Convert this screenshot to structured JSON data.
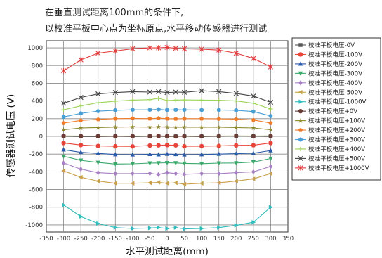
{
  "chart_data": {
    "type": "line",
    "title_lines": [
      "在垂直测试距离100mm的条件下,",
      "以校准平板中心点为坐标原点,水平移动传感器进行测试"
    ],
    "xlabel": "水平测试距离(mm)",
    "ylabel": "传感器测试电压 (V)",
    "xlim": [
      -350,
      350
    ],
    "ylim": [
      -1080,
      1080
    ],
    "xticks": [
      -350,
      -300,
      -250,
      -200,
      -150,
      -100,
      -50,
      0,
      50,
      100,
      150,
      200,
      250,
      300,
      350
    ],
    "yticks": [
      -1000,
      -800,
      -600,
      -400,
      -200,
      0,
      200,
      400,
      600,
      800,
      1000
    ],
    "x_vertical_grid": [
      -300,
      -250,
      -200,
      -150,
      -100,
      -50,
      0,
      50,
      100,
      150,
      200,
      250,
      300
    ],
    "grid": true,
    "legend_position": "right",
    "x": [
      -300,
      -250,
      -200,
      -150,
      -100,
      -50,
      -25,
      0,
      25,
      50,
      100,
      150,
      200,
      250,
      300
    ],
    "series": [
      {
        "name": "校准平板电压-0V",
        "color": "#555555",
        "marker": "square",
        "values": [
          0,
          -2,
          -2,
          0,
          -2,
          0,
          0,
          -2,
          0,
          0,
          -2,
          0,
          2,
          0,
          -2
        ]
      },
      {
        "name": "校准平板电压-100V",
        "color": "#e8443a",
        "marker": "circle",
        "values": [
          -75,
          -98,
          -108,
          -112,
          -113,
          -103,
          -101,
          -98,
          -101,
          -112,
          -110,
          -108,
          -102,
          -100,
          -75
        ]
      },
      {
        "name": "校准平板电压-200V",
        "color": "#2a5aa8",
        "marker": "triangle-up",
        "values": [
          -150,
          -180,
          -192,
          -205,
          -207,
          -202,
          -206,
          -200,
          -203,
          -207,
          -205,
          -200,
          -195,
          -190,
          -160
        ]
      },
      {
        "name": "校准平板电压-300V",
        "color": "#3aa86a",
        "marker": "triangle-down",
        "values": [
          -225,
          -270,
          -295,
          -312,
          -310,
          -302,
          -300,
          -298,
          -300,
          -305,
          -308,
          -302,
          -300,
          -290,
          -250
        ]
      },
      {
        "name": "校准平板电压-400V",
        "color": "#a77fc4",
        "marker": "diamond",
        "values": [
          -300,
          -370,
          -410,
          -420,
          -420,
          -418,
          -430,
          -410,
          -420,
          -428,
          -420,
          -420,
          -410,
          -400,
          -340
        ]
      },
      {
        "name": "校准平板电压-500V",
        "color": "#c7a04a",
        "marker": "triangle-left",
        "values": [
          -390,
          -462,
          -505,
          -530,
          -530,
          -525,
          -520,
          -530,
          -525,
          -540,
          -530,
          -525,
          -505,
          -480,
          -420
        ]
      },
      {
        "name": "校准平板电压-1000V",
        "color": "#30bdbd",
        "marker": "triangle-right",
        "values": [
          -775,
          -905,
          -985,
          -1030,
          -1040,
          -1035,
          -1030,
          -1040,
          -1030,
          -1045,
          -1040,
          -1030,
          -1005,
          -970,
          -800
        ]
      },
      {
        "name": "校准平板电压+0V",
        "color": "#6b3b35",
        "marker": "circle",
        "values": [
          5,
          3,
          3,
          2,
          3,
          3,
          5,
          3,
          0,
          3,
          2,
          3,
          5,
          3,
          5
        ]
      },
      {
        "name": "校准平板电压+100V",
        "color": "#8f8a30",
        "marker": "star",
        "values": [
          75,
          95,
          100,
          105,
          108,
          105,
          108,
          105,
          103,
          105,
          103,
          103,
          100,
          95,
          75
        ]
      },
      {
        "name": "校准平板电压+200V",
        "color": "#f07c2a",
        "marker": "pentagon",
        "values": [
          150,
          180,
          192,
          200,
          203,
          200,
          205,
          200,
          198,
          200,
          200,
          198,
          195,
          185,
          150
        ]
      },
      {
        "name": "校准平板电压+300V",
        "color": "#4a9fd6",
        "marker": "hexagon",
        "values": [
          220,
          260,
          285,
          295,
          300,
          300,
          305,
          298,
          300,
          300,
          298,
          298,
          295,
          280,
          230
        ]
      },
      {
        "name": "校准平板电压+400V",
        "color": "#9ed35a",
        "marker": "plus",
        "values": [
          300,
          345,
          380,
          398,
          410,
          415,
          430,
          405,
          410,
          412,
          410,
          408,
          400,
          375,
          310
        ]
      },
      {
        "name": "校准平板电压+500V",
        "color": "#444444",
        "marker": "x",
        "values": [
          375,
          440,
          480,
          495,
          505,
          500,
          505,
          495,
          500,
          498,
          515,
          505,
          485,
          455,
          385
        ]
      },
      {
        "name": "校准平板电压+1000V",
        "color": "#e03c3c",
        "marker": "asterisk",
        "values": [
          740,
          865,
          940,
          965,
          990,
          1000,
          1000,
          1005,
          995,
          990,
          985,
          975,
          940,
          880,
          785
        ]
      }
    ]
  }
}
